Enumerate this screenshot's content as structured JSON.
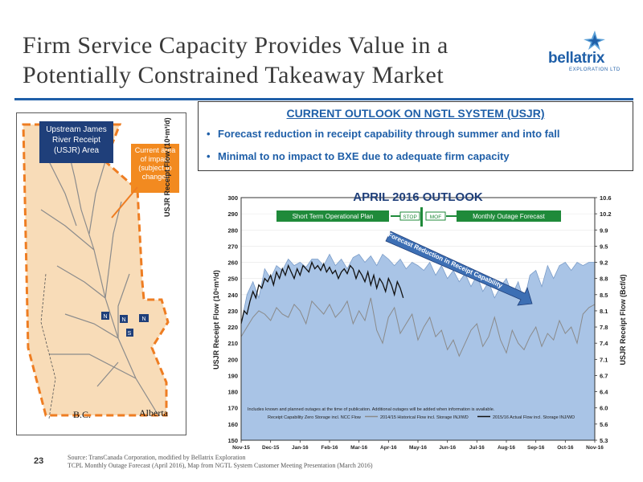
{
  "slide": {
    "title_line1": "Firm Service Capacity Provides Value in a",
    "title_line2": "Potentially Constrained Takeaway Market",
    "page_number": "23",
    "source_line1": "Source: TransCanada Corporation, modified by Bellatrix Exploration",
    "source_line2": "TCPL Monthly Outage Forecast (April 2016), Map from NGTL System Customer Meeting Presentation (March 2016)"
  },
  "logo": {
    "name": "bellatrix",
    "subtitle": "EXPLORATION LTD",
    "icon": "star-burst-icon",
    "color": "#1f5fa8"
  },
  "map": {
    "area_title": "Upstream James River Receipt (USJR) Area",
    "impact_note": "Current area of impact (subject to change)",
    "label_bc": "B.C.",
    "label_alberta": "Alberta",
    "axis_label": "USJR Receipt Flow (10⁶m³/d)",
    "markers": [
      "N",
      "N",
      "N",
      "S"
    ],
    "colors": {
      "area_fill": "#f8dcb8",
      "boundary": "#ee7d22",
      "pipeline": "#888888"
    }
  },
  "outlook": {
    "heading": "CURRENT OUTLOOK ON NGTL SYSTEM (USJR)",
    "bullets": [
      "Forecast reduction in receipt capability through summer and into fall",
      "Minimal to no impact to BXE due to adequate firm capacity"
    ]
  },
  "chart_data": {
    "type": "area",
    "title": "APRIL 2016 OUTLOOK",
    "ylabel": "USJR Receipt Flow (10⁶m³/d)",
    "y2label": "USJR Receipt Flow (Bcf/d)",
    "ylim": [
      150,
      300
    ],
    "y2lim": [
      5.3,
      10.6
    ],
    "yticks": [
      "150",
      "160",
      "170",
      "180",
      "190",
      "200",
      "210",
      "220",
      "230",
      "240",
      "250",
      "260",
      "270",
      "280",
      "290",
      "300"
    ],
    "y2ticks": [
      "5.3",
      "5.6",
      "6.0",
      "6.4",
      "6.7",
      "7.1",
      "7.4",
      "7.8",
      "8.1",
      "8.5",
      "8.8",
      "9.2",
      "9.5",
      "9.9",
      "10.2",
      "10.6"
    ],
    "xticks": [
      "Nov-15",
      "Dec-15",
      "Jan-16",
      "Feb-16",
      "Mar-16",
      "Apr-16",
      "May-16",
      "Jun-16",
      "Jul-16",
      "Aug-16",
      "Sep-16",
      "Oct-16",
      "Nov-16"
    ],
    "annotations": {
      "short_term": "Short Term Operational Plan",
      "stop": "STOP",
      "mof": "MOF",
      "monthly": "Monthly Outage Forecast",
      "forecast_reduction": "Forecast Reduction in Receipt Capability",
      "footnote": "Includes known and planned outages at the time of publication.  Additional outages will be added when information is available."
    },
    "legend": [
      "Receipt Capability Zero Storage incl. NCC Flow",
      "2014/15 Historical Flow incl. Storage INJ/WD",
      "2015/16 Actual Flow incl. Storage INJ/WD"
    ],
    "legend_placement": "bottom",
    "series": [
      {
        "name": "Receipt Capability Zero Storage incl. NCC Flow",
        "color": "#a9c4e6",
        "x": [
          0,
          0.2,
          0.4,
          0.6,
          0.8,
          1.0,
          1.2,
          1.4,
          1.6,
          1.8,
          2.0,
          2.2,
          2.4,
          2.6,
          2.8,
          3.0,
          3.2,
          3.4,
          3.6,
          3.8,
          4.0,
          4.2,
          4.4,
          4.6,
          4.8,
          5.0,
          5.2,
          5.4,
          5.6,
          5.8,
          6.0,
          6.2,
          6.4,
          6.6,
          6.8,
          7.0,
          7.2,
          7.4,
          7.6,
          7.8,
          8.0,
          8.2,
          8.4,
          8.6,
          8.8,
          9.0,
          9.2,
          9.4,
          9.6,
          9.8,
          10.0,
          10.2,
          10.4,
          10.6,
          10.8,
          11.0,
          11.2,
          11.4,
          11.6,
          11.8,
          12.0
        ],
        "values": [
          222,
          240,
          248,
          238,
          256,
          250,
          258,
          255,
          262,
          258,
          260,
          257,
          262,
          262,
          258,
          265,
          258,
          262,
          256,
          263,
          265,
          260,
          264,
          258,
          265,
          262,
          258,
          262,
          256,
          260,
          258,
          255,
          260,
          252,
          258,
          250,
          255,
          248,
          253,
          245,
          252,
          242,
          248,
          238,
          245,
          250,
          240,
          248,
          236,
          252,
          255,
          245,
          258,
          250,
          258,
          260,
          255,
          260,
          258,
          260,
          260
        ]
      },
      {
        "name": "2014/15 Historical Flow incl. Storage INJ/WD",
        "color": "#8a8a8a",
        "x": [
          0,
          0.2,
          0.4,
          0.6,
          0.8,
          1.0,
          1.2,
          1.4,
          1.6,
          1.8,
          2.0,
          2.2,
          2.4,
          2.6,
          2.8,
          3.0,
          3.2,
          3.4,
          3.6,
          3.8,
          4.0,
          4.2,
          4.4,
          4.6,
          4.8,
          5.0,
          5.2,
          5.4,
          5.6,
          5.8,
          6.0,
          6.2,
          6.4,
          6.6,
          6.8,
          7.0,
          7.2,
          7.4,
          7.6,
          7.8,
          8.0,
          8.2,
          8.4,
          8.6,
          8.8,
          9.0,
          9.2,
          9.4,
          9.6,
          9.8,
          10.0,
          10.2,
          10.4,
          10.6,
          10.8,
          11.0,
          11.2,
          11.4,
          11.6,
          11.8,
          12.0
        ],
        "values": [
          214,
          220,
          226,
          230,
          228,
          224,
          232,
          228,
          226,
          234,
          230,
          222,
          236,
          232,
          228,
          234,
          226,
          230,
          236,
          222,
          230,
          224,
          238,
          218,
          210,
          226,
          232,
          216,
          222,
          228,
          212,
          220,
          226,
          214,
          218,
          206,
          212,
          202,
          210,
          218,
          222,
          208,
          214,
          226,
          212,
          204,
          218,
          210,
          206,
          214,
          220,
          208,
          216,
          212,
          224,
          216,
          220,
          210,
          228,
          232,
          234
        ]
      },
      {
        "name": "2015/16 Actual Flow incl. Storage INJ/WD",
        "color": "#111111",
        "x": [
          0,
          0.1,
          0.2,
          0.3,
          0.4,
          0.5,
          0.6,
          0.7,
          0.8,
          0.9,
          1.0,
          1.1,
          1.2,
          1.3,
          1.4,
          1.5,
          1.6,
          1.7,
          1.8,
          1.9,
          2.0,
          2.1,
          2.2,
          2.3,
          2.4,
          2.5,
          2.6,
          2.7,
          2.8,
          2.9,
          3.0,
          3.1,
          3.2,
          3.3,
          3.4,
          3.5,
          3.6,
          3.7,
          3.8,
          3.9,
          4.0,
          4.1,
          4.2,
          4.3,
          4.4,
          4.5,
          4.6,
          4.7,
          4.8,
          4.9,
          5.0,
          5.1,
          5.2,
          5.3,
          5.4,
          5.5
        ],
        "values": [
          222,
          230,
          228,
          236,
          242,
          238,
          246,
          244,
          250,
          248,
          252,
          246,
          254,
          250,
          256,
          252,
          258,
          254,
          250,
          256,
          252,
          258,
          256,
          254,
          260,
          256,
          258,
          255,
          259,
          254,
          257,
          253,
          255,
          250,
          254,
          256,
          253,
          258,
          256,
          250,
          255,
          252,
          248,
          254,
          246,
          252,
          244,
          250,
          247,
          242,
          250,
          246,
          240,
          248,
          244,
          238
        ]
      }
    ]
  }
}
